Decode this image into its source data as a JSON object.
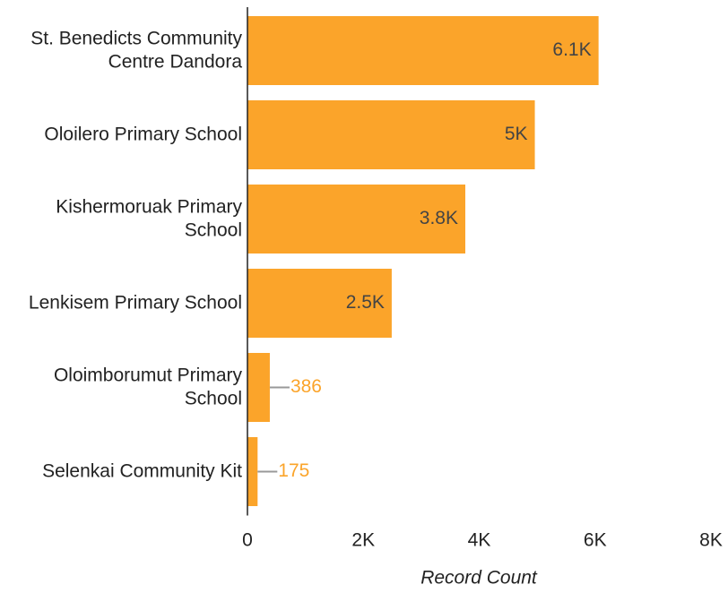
{
  "chart_data": {
    "type": "bar",
    "orientation": "horizontal",
    "categories": [
      "St. Benedicts Community Centre Dandora",
      "Oloilero Primary School",
      "Kishermoruak Primary School",
      "Lenkisem Primary School",
      "Oloimborumut Primary School",
      "Selenkai Community Kit"
    ],
    "values": [
      6060,
      4960,
      3760,
      2490,
      386,
      175
    ],
    "value_labels": [
      "6.1K",
      "5K",
      "3.8K",
      "2.5K",
      "386",
      "175"
    ],
    "color": "#fba42a",
    "xlim": [
      0,
      8000
    ],
    "xticks": [
      0,
      {
        "value": 2000,
        "label": "2K"
      },
      {
        "value": 4000,
        "label": "4K"
      },
      {
        "value": 6000,
        "label": "6K"
      },
      {
        "value": 8000,
        "label": "8K"
      }
    ],
    "xlabel": "Record Count"
  }
}
